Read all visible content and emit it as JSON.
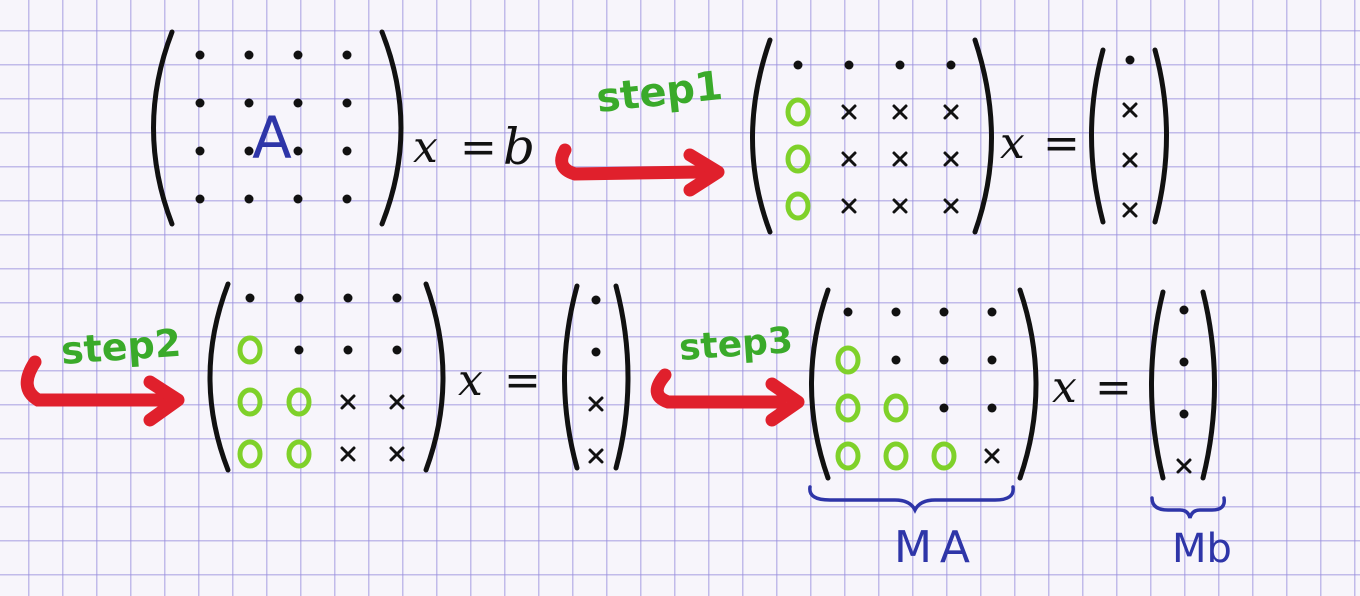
{
  "colors": {
    "ink": "#111111",
    "dot_color": "#111111",
    "zero_color": "#7fd12a",
    "step_label_color": "#3aaa2a",
    "arrow_color": "#e0202c",
    "blue_ink": "#2e35a8",
    "grid_line": "#9a90dc"
  },
  "matrix_A_label": "A",
  "eq1": {
    "lhs_var": "x",
    "equals": "=",
    "rhs": "b"
  },
  "steps": [
    "step1",
    "step2",
    "step3"
  ],
  "eq2": {
    "var": "x",
    "equals": "="
  },
  "eq3": {
    "var": "x",
    "equals": "="
  },
  "eq4": {
    "var": "x",
    "equals": "="
  },
  "matrices": {
    "A": [
      [
        "•",
        "•",
        "•",
        "•"
      ],
      [
        "•",
        "•",
        "•",
        "•"
      ],
      [
        "•",
        "•",
        "•",
        "•"
      ],
      [
        "•",
        "•",
        "•",
        "•"
      ]
    ],
    "after_step1": [
      [
        "•",
        "•",
        "•",
        "•"
      ],
      [
        "0",
        "×",
        "×",
        "×"
      ],
      [
        "0",
        "×",
        "×",
        "×"
      ],
      [
        "0",
        "×",
        "×",
        "×"
      ]
    ],
    "after_step2": [
      [
        "•",
        "•",
        "•",
        "•"
      ],
      [
        "0",
        "•",
        "•",
        "•"
      ],
      [
        "0",
        "0",
        "×",
        "×"
      ],
      [
        "0",
        "0",
        "×",
        "×"
      ]
    ],
    "after_step3": [
      [
        "•",
        "•",
        "•",
        "•"
      ],
      [
        "0",
        "•",
        "•",
        "•"
      ],
      [
        "0",
        "0",
        "•",
        "•"
      ],
      [
        "0",
        "0",
        "0",
        "×"
      ]
    ]
  },
  "vectors": {
    "after_step1": [
      "•",
      "×",
      "×",
      "×"
    ],
    "after_step2": [
      "•",
      "•",
      "×",
      "×"
    ],
    "after_step3": [
      "•",
      "•",
      "•",
      "×"
    ]
  },
  "brace_labels": {
    "matrix": "MA",
    "vector": "Mb"
  }
}
